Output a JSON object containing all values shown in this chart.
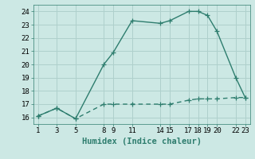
{
  "line1_x": [
    1,
    3,
    5,
    8,
    9,
    11,
    14,
    15,
    17,
    18,
    19,
    20,
    22,
    23
  ],
  "line1_y": [
    16.1,
    16.7,
    15.9,
    20.0,
    20.9,
    23.3,
    23.1,
    23.3,
    24.0,
    24.0,
    23.7,
    22.5,
    19.0,
    17.5
  ],
  "line2_x": [
    1,
    3,
    5,
    8,
    9,
    11,
    14,
    15,
    17,
    18,
    19,
    20,
    22,
    23
  ],
  "line2_y": [
    16.1,
    16.7,
    15.9,
    17.0,
    17.0,
    17.0,
    17.0,
    17.0,
    17.3,
    17.4,
    17.4,
    17.4,
    17.5,
    17.5
  ],
  "line_color": "#2e7d6e",
  "bg_color": "#cce8e4",
  "grid_color": "#afd0cc",
  "xlabel": "Humidex (Indice chaleur)",
  "ylim": [
    15.5,
    24.5
  ],
  "xlim": [
    0.5,
    23.5
  ],
  "yticks": [
    16,
    17,
    18,
    19,
    20,
    21,
    22,
    23,
    24
  ],
  "xticks": [
    1,
    3,
    5,
    8,
    9,
    11,
    14,
    15,
    17,
    18,
    19,
    20,
    22,
    23
  ],
  "xlabel_fontsize": 7.5,
  "tick_fontsize": 6.5
}
